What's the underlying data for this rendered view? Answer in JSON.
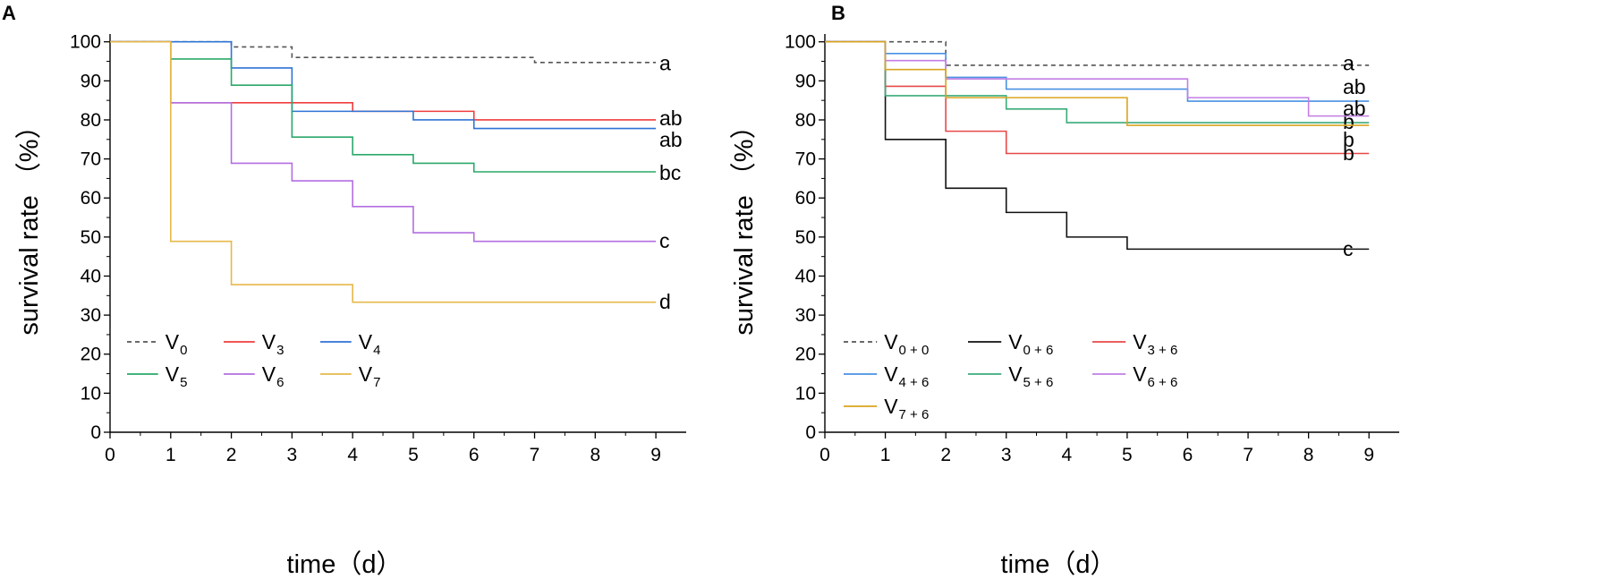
{
  "chart_data": [
    {
      "panel_label": "A",
      "type": "line",
      "step": true,
      "xlabel": "time（d）",
      "ylabel": "survival rate （%）",
      "xlim": [
        0,
        9.5
      ],
      "ylim": [
        0,
        102
      ],
      "xticks": [
        0,
        1,
        2,
        3,
        4,
        5,
        6,
        7,
        8,
        9
      ],
      "yticks": [
        0,
        10,
        20,
        30,
        40,
        50,
        60,
        70,
        80,
        90,
        100
      ],
      "series": [
        {
          "name": "V",
          "sub": "0",
          "color": "#555555",
          "dash": true,
          "x": [
            0,
            2,
            3,
            7,
            9
          ],
          "y": [
            100,
            98.7,
            96,
            94.7,
            94.7
          ],
          "end_label": "a",
          "end_label_y": 94.5
        },
        {
          "name": "V",
          "sub": "3",
          "color": "#f03c3c",
          "dash": false,
          "x": [
            0,
            1,
            2,
            4,
            6,
            9
          ],
          "y": [
            100,
            84.4,
            84.4,
            82.2,
            80,
            80
          ],
          "end_label": "ab",
          "end_label_y": 80.5
        },
        {
          "name": "V",
          "sub": "4",
          "color": "#2f73d6",
          "dash": false,
          "x": [
            0,
            2,
            3,
            5,
            6,
            9
          ],
          "y": [
            100,
            93.3,
            82.2,
            80,
            77.8,
            77.8
          ],
          "end_label": "ab",
          "end_label_y": 75
        },
        {
          "name": "V",
          "sub": "5",
          "color": "#2aa86a",
          "dash": false,
          "x": [
            0,
            1,
            2,
            3,
            4,
            5,
            6,
            9
          ],
          "y": [
            100,
            95.6,
            88.9,
            75.6,
            71.1,
            68.9,
            66.7,
            66.7
          ],
          "end_label": "bc",
          "end_label_y": 66.5
        },
        {
          "name": "V",
          "sub": "6",
          "color": "#b36ee0",
          "dash": false,
          "x": [
            0,
            1,
            2,
            3,
            4,
            5,
            6,
            9
          ],
          "y": [
            100,
            84.4,
            68.9,
            64.4,
            57.8,
            51.1,
            48.9,
            48.9
          ],
          "end_label": "c",
          "end_label_y": 49
        },
        {
          "name": "V",
          "sub": "7",
          "color": "#e6b84a",
          "dash": false,
          "x": [
            0,
            1,
            2,
            4,
            9
          ],
          "y": [
            100,
            48.9,
            37.8,
            33.3,
            33.3
          ],
          "end_label": "d",
          "end_label_y": 33.5
        }
      ]
    },
    {
      "panel_label": "B",
      "type": "line",
      "step": true,
      "xlabel": "time（d）",
      "ylabel": "survival rate （%）",
      "xlim": [
        0,
        9.5
      ],
      "ylim": [
        0,
        102
      ],
      "xticks": [
        0,
        1,
        2,
        3,
        4,
        5,
        6,
        7,
        8,
        9
      ],
      "yticks": [
        0,
        10,
        20,
        30,
        40,
        50,
        60,
        70,
        80,
        90,
        100
      ],
      "series": [
        {
          "name": "V",
          "sub": "0 + 0",
          "color": "#555555",
          "dash": true,
          "x": [
            0,
            2,
            9
          ],
          "y": [
            100,
            94,
            94
          ],
          "end_label": "a",
          "end_label_y": 94.5
        },
        {
          "name": "V",
          "sub": "0 + 6",
          "color": "#111111",
          "dash": false,
          "x": [
            0,
            1,
            2,
            3,
            4,
            5,
            9
          ],
          "y": [
            100,
            75,
            62.5,
            56.3,
            50,
            46.9,
            46.9
          ],
          "end_label": "c",
          "end_label_y": 47
        },
        {
          "name": "V",
          "sub": "3 + 6",
          "color": "#e84848",
          "dash": false,
          "x": [
            0,
            1,
            2,
            3,
            9
          ],
          "y": [
            100,
            88.6,
            77.1,
            71.4,
            71.4
          ],
          "end_label": "b",
          "end_label_y": 71.5
        },
        {
          "name": "V",
          "sub": "4 + 6",
          "color": "#4a90e2",
          "dash": false,
          "x": [
            0,
            1,
            2,
            3,
            6,
            9
          ],
          "y": [
            100,
            97,
            90.9,
            87.9,
            84.8,
            84.8
          ],
          "end_label": "ab",
          "end_label_y": 88.5
        },
        {
          "name": "V",
          "sub": "5 + 6",
          "color": "#3aab78",
          "dash": false,
          "x": [
            0,
            1,
            3,
            4,
            9
          ],
          "y": [
            100,
            86.2,
            82.8,
            79.3,
            79.3
          ],
          "end_label": "b",
          "end_label_y": 79.5
        },
        {
          "name": "V",
          "sub": "6 + 6",
          "color": "#c37ee6",
          "dash": false,
          "x": [
            0,
            1,
            2,
            6,
            8,
            9
          ],
          "y": [
            100,
            95.2,
            90.5,
            85.7,
            81,
            81
          ],
          "end_label": "ab",
          "end_label_y": 83
        },
        {
          "name": "V",
          "sub": "7 + 6",
          "color": "#d9a520",
          "dash": false,
          "x": [
            0,
            1,
            2,
            5,
            9
          ],
          "y": [
            100,
            92.9,
            85.7,
            78.6,
            78.6
          ],
          "end_label": "b",
          "end_label_y": 75
        }
      ]
    }
  ]
}
